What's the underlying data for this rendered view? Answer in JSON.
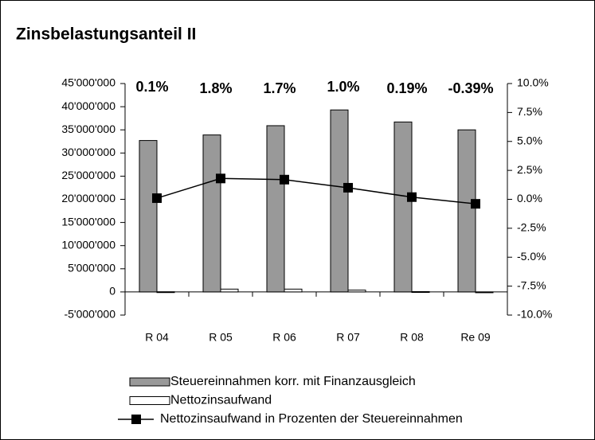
{
  "chart_data": {
    "type": "bar",
    "title": "Zinsbelastungsanteil II",
    "categories": [
      "R 04",
      "R 05",
      "R 06",
      "R 07",
      "R 08",
      "Re 09"
    ],
    "series": [
      {
        "name": "Steuereinnahmen korr. mit Finanzausgleich",
        "type": "bar",
        "color": "#999999",
        "axis": "y",
        "values": [
          32700000,
          33900000,
          35900000,
          39300000,
          36700000,
          35000000
        ]
      },
      {
        "name": "Nettozinsaufwand",
        "type": "bar",
        "color": "#ffffff",
        "axis": "y",
        "values": [
          33000,
          610000,
          610000,
          393000,
          70000,
          -137000
        ]
      },
      {
        "name": "Nettozinsaufwand in Prozenten der Steuereinnahmen",
        "type": "line",
        "color": "#000000",
        "axis": "y2",
        "values": [
          0.1,
          1.8,
          1.7,
          1.0,
          0.19,
          -0.39
        ],
        "value_labels": [
          "0.1%",
          "1.8%",
          "1.7%",
          "1.0%",
          "0.19%",
          "-0.39%"
        ]
      }
    ],
    "ylim": [
      -5000000,
      45000000
    ],
    "yticks": [
      {
        "value": -5000000,
        "label": "-5'000'000"
      },
      0,
      {
        "value": 5000000,
        "label": "5'000'000"
      },
      {
        "value": 10000000,
        "label": "10'000'000"
      },
      {
        "value": 15000000,
        "label": "15'000'000"
      },
      {
        "value": 20000000,
        "label": "20'000'000"
      },
      {
        "value": 25000000,
        "label": "25'000'000"
      },
      {
        "value": 30000000,
        "label": "30'000'000"
      },
      {
        "value": 35000000,
        "label": "35'000'000"
      },
      {
        "value": 40000000,
        "label": "40'000'000"
      },
      {
        "value": 45000000,
        "label": "45'000'000"
      }
    ],
    "y2lim": [
      -10,
      10
    ],
    "y2ticks": [
      {
        "value": -10,
        "label": "-10.0%"
      },
      {
        "value": -7.5,
        "label": "-7.5%"
      },
      {
        "value": -5,
        "label": "-5.0%"
      },
      {
        "value": -2.5,
        "label": "-2.5%"
      },
      {
        "value": 0,
        "label": "0.0%"
      },
      {
        "value": 2.5,
        "label": "2.5%"
      },
      {
        "value": 5,
        "label": "5.0%"
      },
      {
        "value": 7.5,
        "label": "7.5%"
      },
      {
        "value": 10,
        "label": "10.0%"
      }
    ],
    "grid": false
  }
}
